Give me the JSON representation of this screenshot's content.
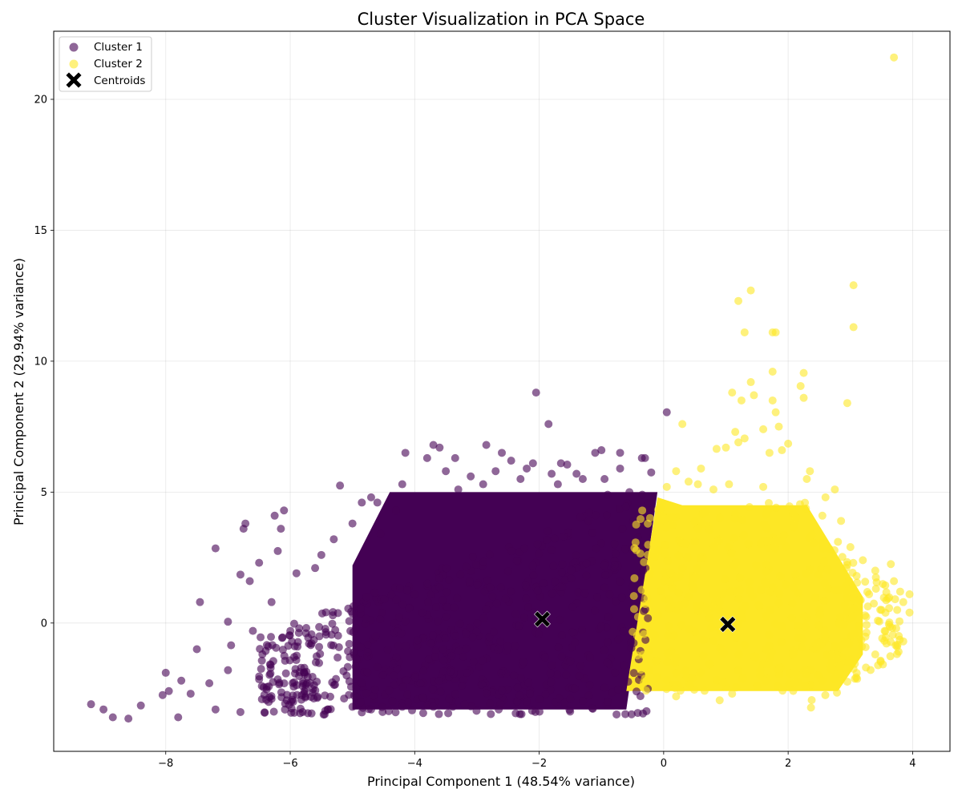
{
  "chart_data": {
    "type": "scatter",
    "title": "Cluster Visualization in PCA Space",
    "xlabel": "Principal Component 1 (48.54% variance)",
    "ylabel": "Principal Component 2 (29.94% variance)",
    "xlim": [
      -9.8,
      4.6
    ],
    "ylim": [
      -4.9,
      22.6
    ],
    "xticks": [
      -8,
      -6,
      -4,
      -2,
      0,
      2,
      4
    ],
    "yticks": [
      0,
      5,
      10,
      15,
      20
    ],
    "grid": true,
    "legend_position": "top-left",
    "series": [
      {
        "name": "Cluster 1",
        "color": "#440154",
        "opacity": 0.6,
        "dense_region": {
          "x_min": -5.0,
          "x_max": -0.3,
          "y_min": -3.3,
          "y_max": 5.0,
          "boundary_x_bottom": -0.6,
          "boundary_x_top": -0.1
        },
        "points": [
          [
            -9.2,
            -3.1
          ],
          [
            -9.0,
            -3.3
          ],
          [
            -8.85,
            -3.6
          ],
          [
            -8.6,
            -3.65
          ],
          [
            -8.4,
            -3.15
          ],
          [
            -8.05,
            -2.75
          ],
          [
            -7.95,
            -2.6
          ],
          [
            -7.8,
            -3.6
          ],
          [
            -8.0,
            -1.9
          ],
          [
            -7.75,
            -2.2
          ],
          [
            -7.5,
            -1.0
          ],
          [
            -7.45,
            0.8
          ],
          [
            -7.2,
            2.85
          ],
          [
            -7.0,
            0.05
          ],
          [
            -6.95,
            -0.85
          ],
          [
            -6.8,
            1.85
          ],
          [
            -6.75,
            3.6
          ],
          [
            -6.72,
            3.8
          ],
          [
            -6.65,
            1.6
          ],
          [
            -6.5,
            2.3
          ],
          [
            -6.25,
            4.1
          ],
          [
            -6.1,
            4.3
          ],
          [
            -6.15,
            3.6
          ],
          [
            -6.2,
            2.75
          ],
          [
            -5.5,
            2.6
          ],
          [
            -5.2,
            5.25
          ],
          [
            -5.0,
            3.8
          ],
          [
            -4.85,
            4.6
          ],
          [
            -4.7,
            4.8
          ],
          [
            -4.6,
            4.6
          ],
          [
            -4.2,
            5.3
          ],
          [
            -4.15,
            6.5
          ],
          [
            -3.8,
            6.3
          ],
          [
            -3.7,
            6.8
          ],
          [
            -3.6,
            6.7
          ],
          [
            -3.5,
            5.8
          ],
          [
            -3.35,
            6.3
          ],
          [
            -3.1,
            5.6
          ],
          [
            -2.85,
            6.8
          ],
          [
            -2.7,
            5.8
          ],
          [
            -2.6,
            6.5
          ],
          [
            -2.45,
            6.2
          ],
          [
            -2.2,
            5.9
          ],
          [
            -2.1,
            6.1
          ],
          [
            -2.05,
            8.8
          ],
          [
            -1.85,
            7.6
          ],
          [
            -1.8,
            5.7
          ],
          [
            -1.65,
            6.1
          ],
          [
            -1.55,
            6.05
          ],
          [
            -1.4,
            5.7
          ],
          [
            -1.1,
            6.5
          ],
          [
            -1.0,
            6.6
          ],
          [
            -0.95,
            5.5
          ],
          [
            -0.7,
            6.5
          ],
          [
            -0.7,
            5.9
          ],
          [
            -0.35,
            6.3
          ],
          [
            -0.3,
            6.3
          ],
          [
            -0.2,
            5.75
          ],
          [
            0.05,
            8.05
          ],
          [
            -0.55,
            5.0
          ],
          [
            -0.9,
            4.9
          ],
          [
            -1.3,
            5.5
          ],
          [
            -1.7,
            5.3
          ],
          [
            -2.3,
            5.5
          ],
          [
            -2.9,
            5.3
          ],
          [
            -3.3,
            5.1
          ],
          [
            -4.3,
            4.3
          ],
          [
            -4.55,
            3.4
          ],
          [
            -5.3,
            3.2
          ],
          [
            -5.6,
            2.1
          ],
          [
            -5.9,
            1.9
          ],
          [
            -6.3,
            0.8
          ],
          [
            -6.6,
            -0.3
          ],
          [
            -7.0,
            -1.8
          ],
          [
            -7.3,
            -2.3
          ],
          [
            -7.6,
            -2.7
          ],
          [
            -7.2,
            -3.3
          ],
          [
            -6.8,
            -3.4
          ],
          [
            -6.3,
            -2.9
          ],
          [
            -5.8,
            -3.4
          ],
          [
            -5.4,
            -3.3
          ],
          [
            -5.0,
            -3.2
          ],
          [
            -4.7,
            -3.3
          ],
          [
            -4.2,
            -3.2
          ],
          [
            -3.7,
            -3.2
          ],
          [
            -3.2,
            -3.1
          ],
          [
            -2.65,
            -3.3
          ],
          [
            -2.2,
            -3.0
          ],
          [
            -1.5,
            -2.9
          ],
          [
            -0.9,
            -3.0
          ]
        ]
      },
      {
        "name": "Cluster 2",
        "color": "#fde725",
        "opacity": 0.6,
        "dense_region": {
          "x_min": -0.6,
          "x_max": 2.3,
          "y_min": -2.6,
          "y_max": 4.5,
          "boundary_x_bottom": -0.6,
          "boundary_x_top": -0.1
        },
        "points": [
          [
            3.7,
            21.6
          ],
          [
            3.05,
            12.9
          ],
          [
            3.05,
            11.3
          ],
          [
            1.2,
            12.3
          ],
          [
            1.4,
            12.7
          ],
          [
            1.3,
            11.1
          ],
          [
            1.75,
            11.1
          ],
          [
            1.8,
            11.1
          ],
          [
            1.75,
            9.6
          ],
          [
            2.25,
            9.55
          ],
          [
            1.4,
            9.2
          ],
          [
            2.2,
            9.05
          ],
          [
            1.1,
            8.8
          ],
          [
            1.45,
            8.7
          ],
          [
            2.25,
            8.6
          ],
          [
            1.25,
            8.5
          ],
          [
            1.75,
            8.5
          ],
          [
            2.95,
            8.4
          ],
          [
            1.8,
            8.05
          ],
          [
            1.85,
            7.5
          ],
          [
            0.3,
            7.6
          ],
          [
            1.15,
            7.3
          ],
          [
            1.3,
            7.05
          ],
          [
            1.6,
            7.4
          ],
          [
            2.0,
            6.85
          ],
          [
            1.0,
            6.7
          ],
          [
            1.2,
            6.9
          ],
          [
            0.85,
            6.65
          ],
          [
            1.7,
            6.5
          ],
          [
            1.9,
            6.6
          ],
          [
            0.6,
            5.9
          ],
          [
            2.35,
            5.8
          ],
          [
            2.75,
            5.1
          ],
          [
            2.55,
            4.1
          ],
          [
            2.85,
            3.9
          ],
          [
            3.2,
            2.4
          ],
          [
            3.1,
            1.8
          ],
          [
            3.3,
            1.1
          ],
          [
            3.5,
            0.5
          ],
          [
            3.85,
            0.8
          ],
          [
            3.95,
            1.1
          ],
          [
            3.95,
            0.4
          ],
          [
            3.65,
            2.25
          ],
          [
            3.85,
            -0.7
          ],
          [
            3.75,
            -0.9
          ],
          [
            3.55,
            -0.3
          ],
          [
            3.4,
            -1.2
          ],
          [
            3.25,
            -1.7
          ],
          [
            3.05,
            -1.75
          ],
          [
            2.7,
            -1.5
          ],
          [
            2.55,
            -2.2
          ],
          [
            2.1,
            -2.3
          ],
          [
            1.5,
            -2.4
          ],
          [
            0.9,
            -2.95
          ],
          [
            0.2,
            -2.8
          ],
          [
            1.1,
            -2.7
          ],
          [
            0.05,
            5.2
          ],
          [
            0.2,
            5.8
          ],
          [
            0.4,
            5.4
          ],
          [
            0.55,
            5.3
          ],
          [
            0.8,
            5.1
          ],
          [
            1.05,
            5.3
          ],
          [
            1.6,
            5.2
          ],
          [
            2.3,
            5.5
          ],
          [
            2.6,
            4.8
          ],
          [
            2.8,
            3.1
          ],
          [
            3.0,
            2.9
          ],
          [
            3.4,
            2.0
          ],
          [
            3.7,
            1.6
          ],
          [
            3.8,
            1.2
          ]
        ]
      },
      {
        "name": "Centroids",
        "color": "#000000",
        "marker": "X",
        "points": [
          [
            -1.95,
            0.15
          ],
          [
            1.03,
            -0.05
          ]
        ]
      }
    ]
  }
}
